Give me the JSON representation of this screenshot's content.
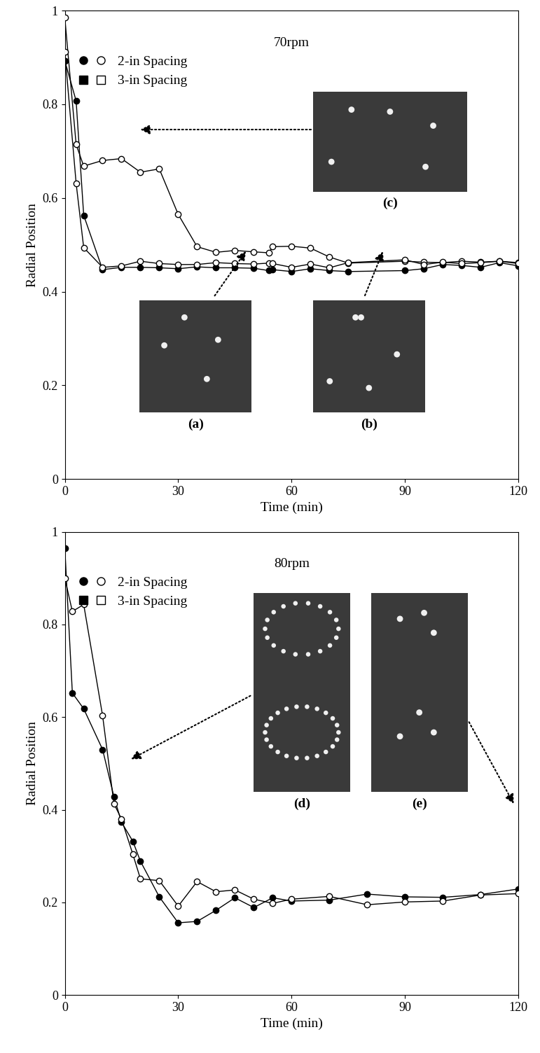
{
  "chart_data": [
    {
      "type": "line",
      "title": "70rpm",
      "x_label": "Time (min)",
      "y_label": "Radial Position",
      "xlim": [
        0,
        120
      ],
      "xticks": [
        0,
        30,
        60,
        90,
        120
      ],
      "ylim": [
        0,
        1
      ],
      "yticks": [
        0,
        0.2,
        0.4,
        0.6,
        0.8,
        1
      ],
      "legend": "upper left",
      "legend_entries": [
        {
          "label": "2-in Spacing",
          "marker": "o"
        },
        {
          "label": "3-in Spacing",
          "marker": "s"
        }
      ],
      "inset_labels": [
        "(a)",
        "(b)",
        "(c)"
      ],
      "series": [
        {
          "color": "black",
          "marker": "o",
          "line_style": "solid",
          "x": [
            0,
            3,
            5,
            10,
            15,
            20,
            25,
            30,
            35,
            40,
            45,
            50,
            54,
            55,
            60,
            65,
            70,
            75,
            90,
            95,
            100,
            105,
            110,
            115,
            120
          ],
          "values": [
            0.893,
            0.807,
            0.563,
            0.447,
            0.452,
            0.452,
            0.451,
            0.449,
            0.453,
            0.451,
            0.451,
            0.45,
            0.445,
            0.447,
            0.443,
            0.449,
            0.445,
            0.443,
            0.445,
            0.449,
            0.458,
            0.456,
            0.452,
            0.462,
            0.455
          ]
        },
        {
          "color": "white",
          "marker": "o",
          "line_style": "solid",
          "x": [
            0,
            3,
            5,
            10,
            15,
            20,
            25,
            30,
            35,
            40,
            45,
            50,
            54,
            55,
            60,
            65,
            70,
            75,
            90,
            95,
            100,
            105,
            110,
            115,
            120
          ],
          "values": [
            0.985,
            0.714,
            0.668,
            0.68,
            0.684,
            0.655,
            0.662,
            0.565,
            0.496,
            0.484,
            0.488,
            0.485,
            0.483,
            0.496,
            0.497,
            0.493,
            0.474,
            0.461,
            0.465,
            0.463,
            0.462,
            0.465,
            0.463,
            0.465,
            0.462
          ]
        },
        {
          "color": "white",
          "marker": "o",
          "line_style": "solid",
          "x": [
            0,
            3,
            5,
            10,
            15,
            20,
            25,
            30,
            35,
            40,
            45,
            50,
            54,
            55,
            60,
            65,
            70,
            75,
            90,
            95,
            100,
            105,
            110,
            115,
            120
          ],
          "values": [
            0.912,
            0.631,
            0.494,
            0.452,
            0.455,
            0.465,
            0.46,
            0.458,
            0.458,
            0.462,
            0.46,
            0.459,
            0.461,
            0.46,
            0.452,
            0.459,
            0.451,
            0.462,
            0.468,
            0.458,
            0.463,
            0.46,
            0.462,
            0.465,
            0.46
          ]
        }
      ]
    },
    {
      "type": "line",
      "title": "80rpm",
      "x_label": "Time (min)",
      "y_label": "Radial Position",
      "xlim": [
        0,
        120
      ],
      "xticks": [
        0,
        30,
        60,
        90,
        120
      ],
      "ylim": [
        0,
        1
      ],
      "yticks": [
        0,
        0.2,
        0.4,
        0.6,
        0.8,
        1
      ],
      "legend": "upper left",
      "legend_entries": [
        {
          "label": "2-in Spacing",
          "marker": "o"
        },
        {
          "label": "3-in Spacing",
          "marker": "s"
        }
      ],
      "inset_labels": [
        "(d)",
        "(e)"
      ],
      "series": [
        {
          "color": "black",
          "marker": "o",
          "line_style": "solid",
          "x": [
            0,
            2,
            5,
            10,
            13,
            15,
            18,
            20,
            25,
            30,
            35,
            40,
            45,
            50,
            55,
            60,
            70,
            80,
            90,
            100,
            110,
            120
          ],
          "values": [
            0.965,
            0.652,
            0.618,
            0.53,
            0.428,
            0.373,
            0.332,
            0.289,
            0.212,
            0.156,
            0.159,
            0.183,
            0.21,
            0.189,
            0.21,
            0.203,
            0.205,
            0.218,
            0.212,
            0.211,
            0.217,
            0.229
          ]
        },
        {
          "color": "white",
          "marker": "o",
          "line_style": "solid",
          "x": [
            0,
            2,
            5,
            10,
            13,
            15,
            18,
            20,
            25,
            30,
            35,
            40,
            45,
            50,
            55,
            60,
            70,
            80,
            90,
            100,
            110,
            120
          ],
          "values": [
            0.9,
            0.828,
            0.843,
            0.603,
            0.413,
            0.38,
            0.304,
            0.251,
            0.247,
            0.192,
            0.245,
            0.223,
            0.227,
            0.207,
            0.198,
            0.207,
            0.213,
            0.195,
            0.201,
            0.203,
            0.216,
            0.219
          ]
        }
      ]
    }
  ]
}
